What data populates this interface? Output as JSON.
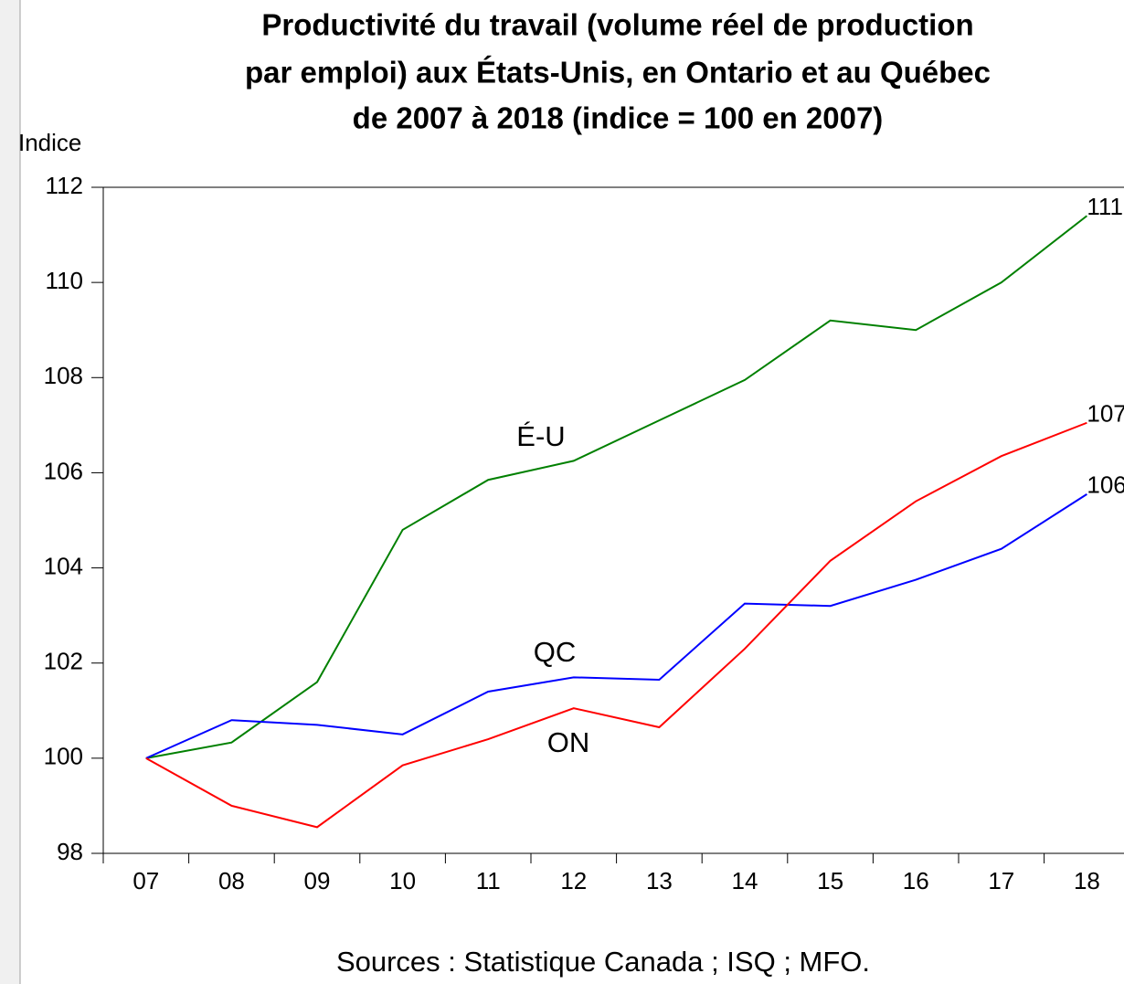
{
  "chart_data": {
    "type": "line",
    "title": [
      "Productivité du travail (volume réel de production",
      "par emploi) aux États-Unis, en Ontario et au Québec",
      "de 2007 à 2018 (indice = 100 en 2007)"
    ],
    "ylabel": "Indice",
    "source": "Sources : Statistique Canada ; ISQ ; MFO.",
    "categories": [
      "07",
      "08",
      "09",
      "10",
      "11",
      "12",
      "13",
      "14",
      "15",
      "16",
      "17",
      "18"
    ],
    "series": [
      {
        "name": "É-U",
        "color": "#008000",
        "end_label": "111",
        "values": [
          100,
          100.33,
          101.6,
          104.8,
          105.85,
          106.25,
          107.1,
          107.95,
          109.2,
          109.0,
          110.0,
          111.4
        ]
      },
      {
        "name": "QC",
        "color": "#0000ff",
        "end_label": "106",
        "values": [
          100,
          100.8,
          100.7,
          100.5,
          101.4,
          101.7,
          101.65,
          103.25,
          103.2,
          103.75,
          104.4,
          105.55
        ]
      },
      {
        "name": "ON",
        "color": "#ff0000",
        "end_label": "107",
        "values": [
          100,
          99.0,
          98.55,
          99.85,
          100.4,
          101.05,
          100.65,
          102.3,
          104.15,
          105.4,
          106.35,
          107.05
        ]
      }
    ],
    "ylim": [
      98,
      112
    ],
    "yticks": [
      98,
      100,
      102,
      104,
      106,
      108,
      110,
      112
    ],
    "grid": false
  }
}
